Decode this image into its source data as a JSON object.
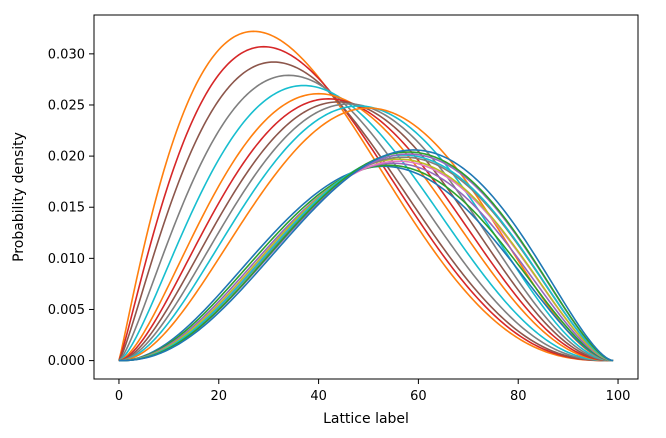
{
  "chart_data": {
    "type": "line",
    "title": "",
    "xlabel": "Lattice label",
    "ylabel": "Probability density",
    "xlim": [
      -5,
      104
    ],
    "ylim": [
      -0.0018,
      0.0338
    ],
    "xticks": [
      0,
      20,
      40,
      60,
      80,
      100
    ],
    "yticks": [
      0.0,
      0.005,
      0.01,
      0.015,
      0.02,
      0.025,
      0.03
    ],
    "xtick_labels": [
      "0",
      "20",
      "40",
      "60",
      "80",
      "100"
    ],
    "ytick_labels": [
      "0.000",
      "0.005",
      "0.010",
      "0.015",
      "0.020",
      "0.025",
      "0.030"
    ],
    "grid": false,
    "legend": "none",
    "x_domain": [
      0,
      99
    ],
    "series": [
      {
        "peak_x": 27,
        "peak_y": 0.0322,
        "color": "#ff7f0e"
      },
      {
        "peak_x": 29,
        "peak_y": 0.0307,
        "color": "#d62728"
      },
      {
        "peak_x": 31,
        "peak_y": 0.0292,
        "color": "#8c564b"
      },
      {
        "peak_x": 34,
        "peak_y": 0.0279,
        "color": "#7f7f7f"
      },
      {
        "peak_x": 37,
        "peak_y": 0.0269,
        "color": "#17becf"
      },
      {
        "peak_x": 40,
        "peak_y": 0.0261,
        "color": "#ff7f0e"
      },
      {
        "peak_x": 42,
        "peak_y": 0.0256,
        "color": "#d62728"
      },
      {
        "peak_x": 44,
        "peak_y": 0.0253,
        "color": "#8c564b"
      },
      {
        "peak_x": 46,
        "peak_y": 0.0251,
        "color": "#7f7f7f"
      },
      {
        "peak_x": 48,
        "peak_y": 0.0249,
        "color": "#17becf"
      },
      {
        "peak_x": 50,
        "peak_y": 0.0247,
        "color": "#ff7f0e"
      },
      {
        "peak_x": 53,
        "peak_y": 0.019,
        "color": "#1f77b4"
      },
      {
        "peak_x": 54,
        "peak_y": 0.0191,
        "color": "#2ca02c"
      },
      {
        "peak_x": 55,
        "peak_y": 0.0193,
        "color": "#9467bd"
      },
      {
        "peak_x": 56,
        "peak_y": 0.0195,
        "color": "#e377c2"
      },
      {
        "peak_x": 56,
        "peak_y": 0.0197,
        "color": "#bcbd22"
      },
      {
        "peak_x": 57,
        "peak_y": 0.0199,
        "color": "#7f7f7f"
      },
      {
        "peak_x": 57,
        "peak_y": 0.0201,
        "color": "#17becf"
      },
      {
        "peak_x": 58,
        "peak_y": 0.0202,
        "color": "#9467bd"
      },
      {
        "peak_x": 58,
        "peak_y": 0.0204,
        "color": "#2ca02c"
      },
      {
        "peak_x": 59,
        "peak_y": 0.0206,
        "color": "#1f77b4"
      }
    ]
  }
}
